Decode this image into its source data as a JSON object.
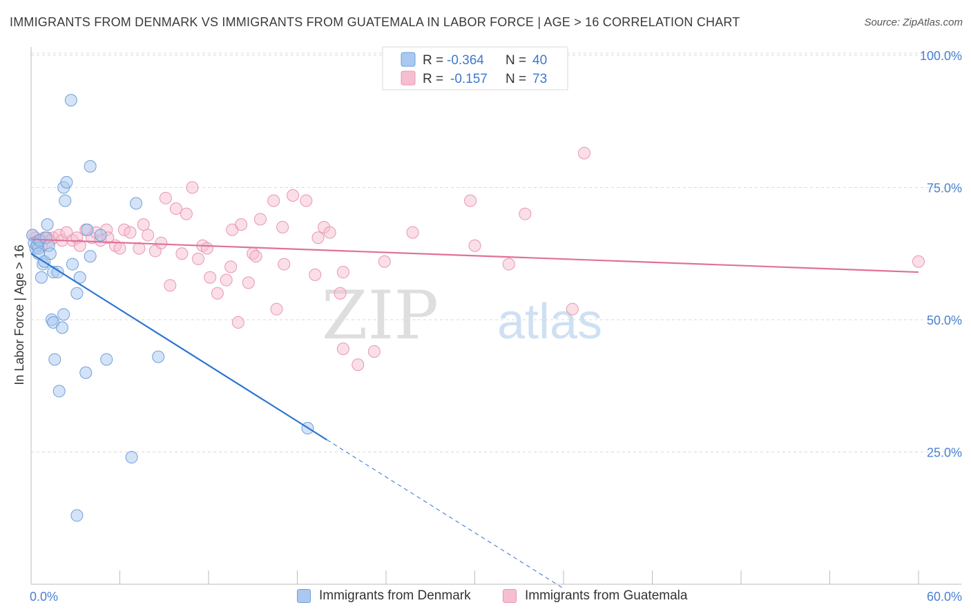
{
  "title": "IMMIGRANTS FROM DENMARK VS IMMIGRANTS FROM GUATEMALA IN LABOR FORCE | AGE > 16 CORRELATION CHART",
  "source": "Source: ZipAtlas.com",
  "watermark": {
    "zip": "ZIP",
    "atlas": "atlas"
  },
  "colors": {
    "denmark_fill": "#aac8f0",
    "denmark_stroke": "#6f9fd8",
    "denmark_line": "#2a73d0",
    "guatemala_fill": "#f6bfd0",
    "guatemala_stroke": "#e995b0",
    "guatemala_line": "#e0709a",
    "axis_label": "#4a7fd0",
    "grid": "#d8d8d8"
  },
  "stats": {
    "denmark": {
      "r_label": "R =",
      "r_value": "-0.364",
      "n_label": "N =",
      "n_value": "40"
    },
    "guatemala": {
      "r_label": "R =",
      "r_value": "-0.157",
      "n_label": "N =",
      "n_value": "73"
    }
  },
  "chart_data": {
    "type": "scatter",
    "title": "IMMIGRANTS FROM DENMARK VS IMMIGRANTS FROM GUATEMALA IN LABOR FORCE | AGE > 16 CORRELATION CHART",
    "xlabel": "",
    "ylabel": "In Labor Force | Age > 16",
    "xlim": [
      0,
      60
    ],
    "ylim": [
      0,
      100
    ],
    "x_tick_labels": [
      "0.0%",
      "60.0%"
    ],
    "y_tick_labels": [
      {
        "value": 100,
        "label": "100.0%"
      },
      {
        "value": 75,
        "label": "75.0%"
      },
      {
        "value": 50,
        "label": "50.0%"
      },
      {
        "value": 25,
        "label": "25.0%"
      }
    ],
    "series": [
      {
        "name": "Immigrants from Denmark",
        "color": "#6f9fd8",
        "trend": {
          "x0": 0.0,
          "y0": 62.5,
          "x1": 20.0,
          "y1": 27.3,
          "dash_to_x": 36.0,
          "dash_to_y": -0.8
        },
        "points": [
          [
            0.1,
            66.0
          ],
          [
            0.2,
            64.5
          ],
          [
            0.3,
            63.5
          ],
          [
            0.4,
            64.0
          ],
          [
            0.5,
            63.5
          ],
          [
            0.5,
            62.5
          ],
          [
            0.6,
            65.0
          ],
          [
            0.7,
            58.0
          ],
          [
            0.8,
            60.5
          ],
          [
            0.9,
            61.0
          ],
          [
            1.0,
            65.5
          ],
          [
            1.1,
            68.0
          ],
          [
            1.2,
            64.0
          ],
          [
            1.3,
            62.5
          ],
          [
            1.4,
            50.0
          ],
          [
            1.5,
            59.0
          ],
          [
            1.5,
            49.5
          ],
          [
            1.6,
            42.5
          ],
          [
            1.8,
            59.0
          ],
          [
            1.9,
            36.5
          ],
          [
            2.1,
            48.5
          ],
          [
            2.2,
            51.0
          ],
          [
            2.2,
            75.0
          ],
          [
            2.3,
            72.5
          ],
          [
            2.4,
            76.0
          ],
          [
            2.7,
            91.5
          ],
          [
            2.8,
            60.5
          ],
          [
            3.1,
            55.0
          ],
          [
            3.3,
            58.0
          ],
          [
            3.7,
            40.0
          ],
          [
            3.8,
            67.0
          ],
          [
            4.0,
            62.0
          ],
          [
            4.0,
            79.0
          ],
          [
            4.7,
            66.0
          ],
          [
            5.1,
            42.5
          ],
          [
            6.8,
            24.0
          ],
          [
            7.1,
            72.0
          ],
          [
            8.6,
            43.0
          ],
          [
            18.7,
            29.5
          ],
          [
            3.1,
            13.0
          ]
        ]
      },
      {
        "name": "Immigrants from Guatemala",
        "color": "#e995b0",
        "trend": {
          "x0": 0.0,
          "y0": 65.2,
          "x1": 60.0,
          "y1": 59.0
        },
        "points": [
          [
            0.1,
            66.0
          ],
          [
            0.3,
            65.5
          ],
          [
            0.5,
            65.0
          ],
          [
            0.7,
            64.0
          ],
          [
            0.9,
            65.5
          ],
          [
            1.1,
            65.5
          ],
          [
            1.3,
            65.0
          ],
          [
            1.5,
            65.5
          ],
          [
            1.9,
            66.0
          ],
          [
            2.1,
            65.0
          ],
          [
            2.4,
            66.5
          ],
          [
            2.8,
            65.0
          ],
          [
            3.1,
            65.5
          ],
          [
            3.3,
            64.0
          ],
          [
            3.7,
            67.0
          ],
          [
            4.1,
            65.5
          ],
          [
            4.4,
            66.5
          ],
          [
            4.7,
            65.0
          ],
          [
            5.1,
            67.0
          ],
          [
            5.2,
            65.5
          ],
          [
            5.7,
            64.0
          ],
          [
            6.0,
            63.5
          ],
          [
            6.3,
            67.0
          ],
          [
            6.7,
            66.5
          ],
          [
            7.3,
            63.5
          ],
          [
            7.6,
            68.0
          ],
          [
            7.9,
            66.0
          ],
          [
            8.4,
            63.0
          ],
          [
            8.8,
            64.5
          ],
          [
            9.1,
            73.0
          ],
          [
            9.4,
            56.5
          ],
          [
            9.8,
            71.0
          ],
          [
            10.2,
            62.5
          ],
          [
            10.5,
            70.0
          ],
          [
            10.9,
            75.0
          ],
          [
            11.3,
            61.5
          ],
          [
            11.6,
            64.0
          ],
          [
            11.9,
            63.5
          ],
          [
            12.1,
            58.0
          ],
          [
            12.6,
            55.0
          ],
          [
            13.2,
            57.5
          ],
          [
            13.5,
            60.0
          ],
          [
            13.6,
            67.0
          ],
          [
            14.0,
            49.5
          ],
          [
            14.2,
            68.0
          ],
          [
            14.7,
            57.0
          ],
          [
            15.0,
            62.5
          ],
          [
            15.2,
            62.0
          ],
          [
            15.5,
            69.0
          ],
          [
            16.4,
            72.5
          ],
          [
            16.6,
            52.0
          ],
          [
            17.0,
            67.5
          ],
          [
            17.1,
            60.5
          ],
          [
            17.7,
            73.5
          ],
          [
            18.6,
            72.5
          ],
          [
            19.2,
            58.5
          ],
          [
            19.4,
            65.5
          ],
          [
            19.8,
            67.5
          ],
          [
            20.2,
            66.5
          ],
          [
            20.9,
            55.0
          ],
          [
            21.1,
            59.0
          ],
          [
            21.1,
            44.5
          ],
          [
            22.1,
            41.5
          ],
          [
            23.2,
            44.0
          ],
          [
            23.9,
            61.0
          ],
          [
            25.8,
            66.5
          ],
          [
            29.7,
            72.5
          ],
          [
            30.0,
            64.0
          ],
          [
            32.3,
            60.5
          ],
          [
            33.4,
            70.0
          ],
          [
            36.6,
            52.0
          ],
          [
            37.4,
            81.5
          ],
          [
            60.0,
            61.0
          ]
        ]
      }
    ]
  },
  "legend": {
    "denmark_label": "Immigrants from Denmark",
    "guatemala_label": "Immigrants from Guatemala"
  }
}
